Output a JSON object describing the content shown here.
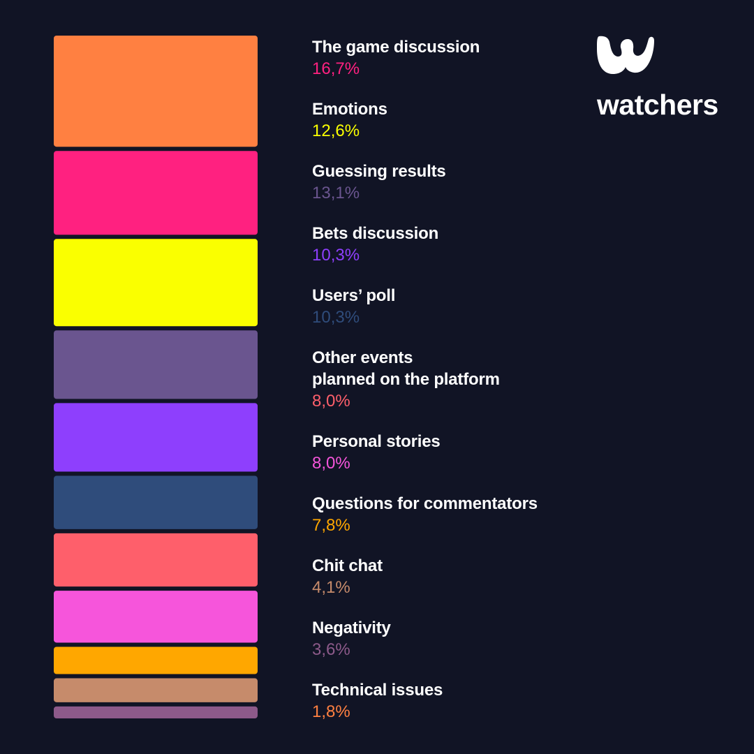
{
  "brand": {
    "name": "watchers",
    "logo_icon": "watchers-w-logo-icon",
    "color": "#ffffff"
  },
  "chart_data": {
    "type": "bar",
    "orientation": "stacked-column",
    "title": "",
    "xlabel": "",
    "ylabel": "",
    "legend": "right",
    "grid": false,
    "categories": [
      "The game discussion",
      "Emotions",
      "Guessing results",
      "Bets discussion",
      "Users’ poll",
      "Other events\nplanned on the platform",
      "Personal stories",
      "Questions for commentators",
      "Chit chat",
      "Negativity",
      "Technical issues"
    ],
    "values": [
      16.7,
      12.6,
      13.1,
      10.3,
      10.3,
      8.0,
      8.0,
      7.8,
      4.1,
      3.6,
      1.8
    ],
    "value_labels": [
      "16,7%",
      "12,6%",
      "13,1%",
      "10,3%",
      "10,3%",
      "8,0%",
      "8,0%",
      "7,8%",
      "4,1%",
      "3,6%",
      "1,8%"
    ],
    "colors": [
      "#ff8041",
      "#ff2180",
      "#faff00",
      "#6a558f",
      "#8e3ffd",
      "#2f4c7b",
      "#fe5f6b",
      "#f655db",
      "#ffa700",
      "#c68b6b",
      "#8d5a8a"
    ]
  }
}
